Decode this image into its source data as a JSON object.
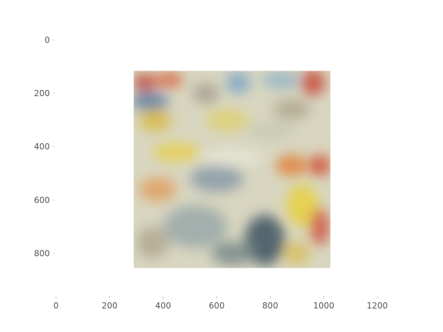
{
  "chart_data": {
    "type": "heatmap",
    "title": "",
    "xlabel": "",
    "ylabel": "",
    "xlim": [
      0,
      1280
    ],
    "ylim": [
      0,
      960
    ],
    "y_inverted": true,
    "grid": false,
    "x_ticks": [
      {
        "value": 0,
        "label": "0"
      },
      {
        "value": 200,
        "label": "200"
      },
      {
        "value": 400,
        "label": "400"
      },
      {
        "value": 600,
        "label": "600"
      },
      {
        "value": 800,
        "label": "800"
      },
      {
        "value": 1000,
        "label": "1000"
      },
      {
        "value": 1200,
        "label": "1200"
      }
    ],
    "y_ticks": [
      {
        "value": 0,
        "label": "0"
      },
      {
        "value": 200,
        "label": "200"
      },
      {
        "value": 400,
        "label": "400"
      },
      {
        "value": 600,
        "label": "600"
      },
      {
        "value": 800,
        "label": "800"
      }
    ],
    "image_extent": {
      "x0": 290,
      "x1": 1025,
      "y0": 115,
      "y1": 855
    },
    "image_background": "#d8d6c0",
    "image_blobs": [
      {
        "x": 330,
        "y": 160,
        "rx": 40,
        "ry": 35,
        "color": "#c0453a"
      },
      {
        "x": 420,
        "y": 150,
        "rx": 55,
        "ry": 30,
        "color": "#d86a48"
      },
      {
        "x": 350,
        "y": 230,
        "rx": 70,
        "ry": 35,
        "color": "#5b7ea6"
      },
      {
        "x": 370,
        "y": 300,
        "rx": 60,
        "ry": 40,
        "color": "#d8b840"
      },
      {
        "x": 560,
        "y": 200,
        "rx": 50,
        "ry": 40,
        "color": "#a8a090"
      },
      {
        "x": 680,
        "y": 160,
        "rx": 45,
        "ry": 40,
        "color": "#7aa4c8"
      },
      {
        "x": 840,
        "y": 150,
        "rx": 70,
        "ry": 30,
        "color": "#8fb0c8"
      },
      {
        "x": 960,
        "y": 160,
        "rx": 45,
        "ry": 50,
        "color": "#c84a3a"
      },
      {
        "x": 880,
        "y": 260,
        "rx": 70,
        "ry": 40,
        "color": "#b0a890"
      },
      {
        "x": 640,
        "y": 300,
        "rx": 80,
        "ry": 40,
        "color": "#e0d070"
      },
      {
        "x": 800,
        "y": 340,
        "rx": 90,
        "ry": 30,
        "color": "#c8c8b0"
      },
      {
        "x": 450,
        "y": 420,
        "rx": 90,
        "ry": 35,
        "color": "#e8d050"
      },
      {
        "x": 660,
        "y": 440,
        "rx": 120,
        "ry": 30,
        "color": "#e8e8d8"
      },
      {
        "x": 880,
        "y": 470,
        "rx": 60,
        "ry": 40,
        "color": "#e0803a"
      },
      {
        "x": 985,
        "y": 470,
        "rx": 40,
        "ry": 40,
        "color": "#d04a30"
      },
      {
        "x": 600,
        "y": 520,
        "rx": 100,
        "ry": 50,
        "color": "#8a9aa8"
      },
      {
        "x": 380,
        "y": 560,
        "rx": 70,
        "ry": 45,
        "color": "#e0a060"
      },
      {
        "x": 920,
        "y": 620,
        "rx": 60,
        "ry": 80,
        "color": "#e8d040"
      },
      {
        "x": 985,
        "y": 700,
        "rx": 35,
        "ry": 70,
        "color": "#d05040"
      },
      {
        "x": 520,
        "y": 700,
        "rx": 120,
        "ry": 80,
        "color": "#9aa8a8"
      },
      {
        "x": 360,
        "y": 760,
        "rx": 60,
        "ry": 60,
        "color": "#b0a890"
      },
      {
        "x": 780,
        "y": 750,
        "rx": 75,
        "ry": 95,
        "color": "#3c5460"
      },
      {
        "x": 660,
        "y": 800,
        "rx": 80,
        "ry": 45,
        "color": "#7a8a8a"
      },
      {
        "x": 900,
        "y": 800,
        "rx": 50,
        "ry": 45,
        "color": "#d8c060"
      }
    ]
  }
}
